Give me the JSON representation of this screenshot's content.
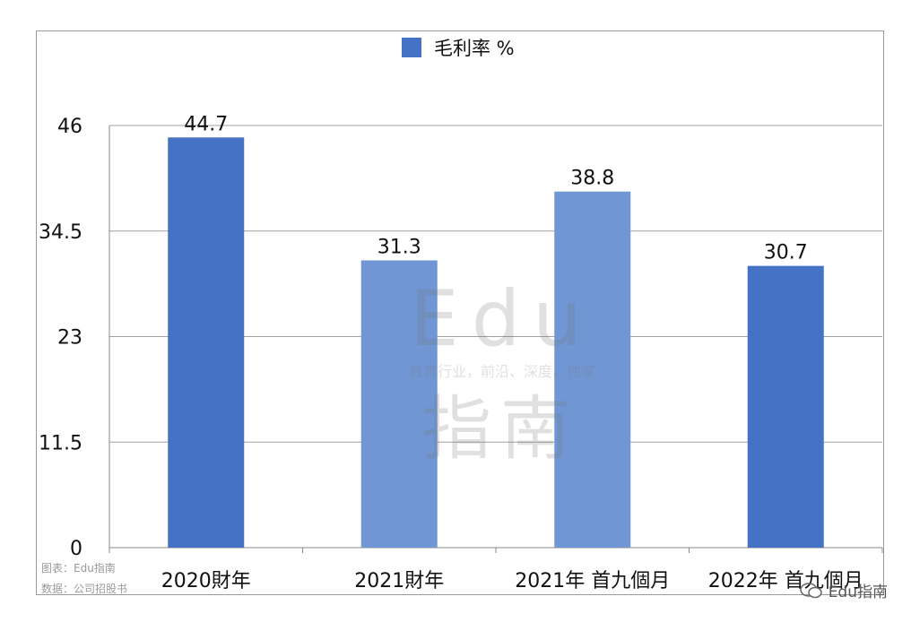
{
  "chart_data": {
    "type": "bar",
    "categories": [
      "2020財年",
      "2021財年",
      "2021年 首九個月",
      "2022年 首九個月"
    ],
    "series": [
      {
        "name": "毛利率 %",
        "values": [
          44.7,
          31.3,
          38.8,
          30.7
        ]
      }
    ],
    "bar_colors": [
      "#4472c4",
      "#7096d3",
      "#7096d3",
      "#4472c4"
    ],
    "legend_color": "#4472c4",
    "yticks": [
      "0",
      "11.5",
      "23",
      "34.5",
      "46"
    ],
    "ylim": [
      0,
      46
    ],
    "grid": true,
    "legend_position": "top-center"
  },
  "source": {
    "chart_label": "图表：Edu指南",
    "data_label": "数据：公司招股书"
  },
  "watermark": {
    "center_top": "Edu",
    "center_mid": "教育行业，前沿、深度、独家",
    "center_bottom": "指南",
    "brand": "Edu指南"
  }
}
